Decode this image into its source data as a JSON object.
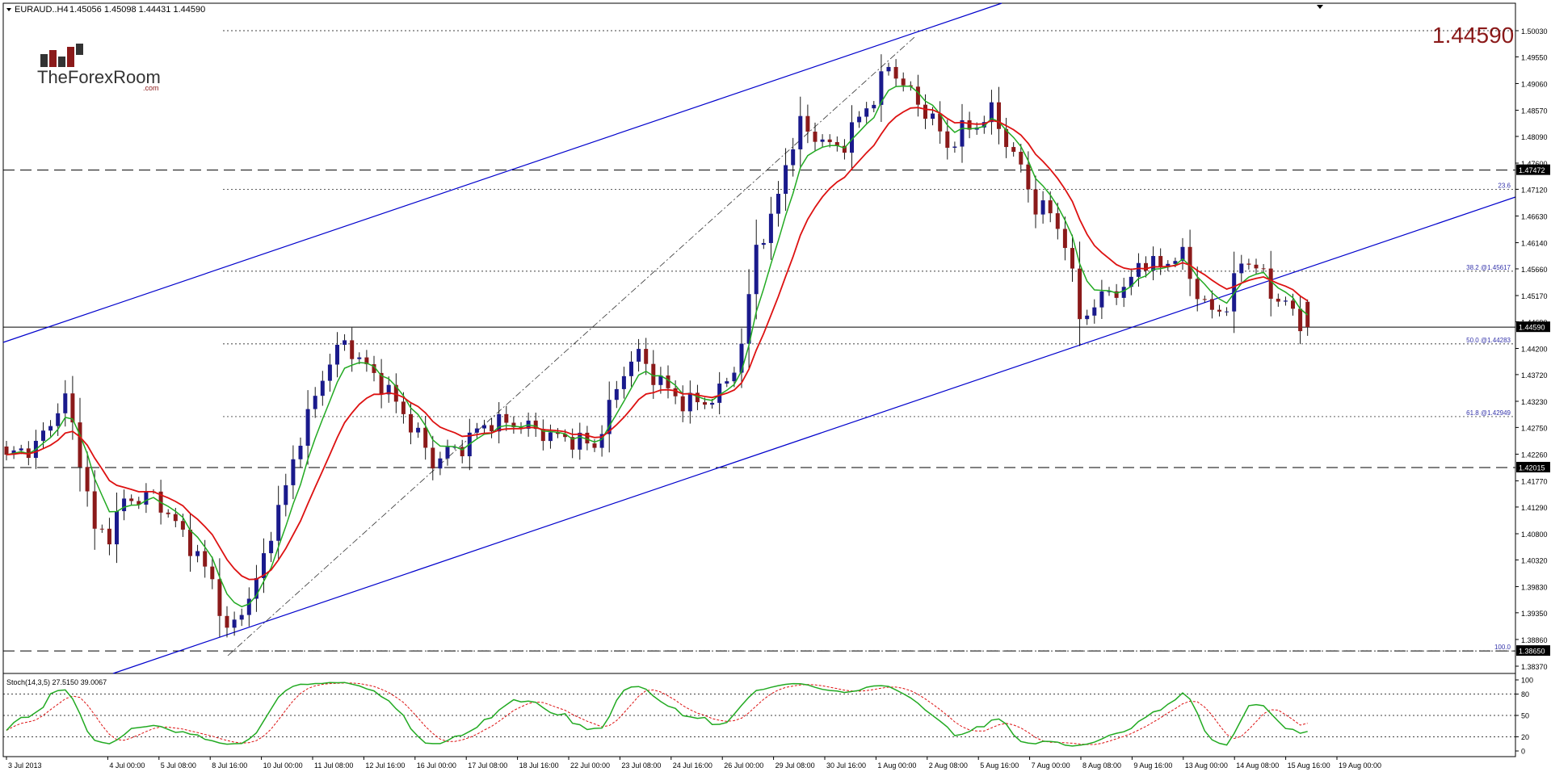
{
  "header": {
    "symbol_text": "EURAUD..H4",
    "ohlc_text": "1.45056 1.45098 1.44431 1.44590"
  },
  "logo": {
    "text_main": "TheForexRoom",
    "text_sub": ".com"
  },
  "big_price": "1.44590",
  "colors": {
    "bull": "#1a1a8c",
    "bear": "#8b1a1a",
    "ma_fast": "#22aa22",
    "ma_slow": "#dd1111",
    "channel": "#0000cc",
    "price_line": "#000000",
    "big_price": "#8b1a1a",
    "stoch_main": "#22aa22",
    "stoch_signal": "#dd1111"
  },
  "chart_data": {
    "type": "candlestick",
    "title": "EURAUD..H4",
    "ylim": [
      1.3837,
      1.5003
    ],
    "y_ticks": [
      "1.50030",
      "1.49550",
      "1.49060",
      "1.48570",
      "1.48090",
      "1.47600",
      "1.47120",
      "1.46630",
      "1.46140",
      "1.45660",
      "1.45170",
      "1.44690",
      "1.44200",
      "1.43720",
      "1.43230",
      "1.42750",
      "1.42260",
      "1.41770",
      "1.41290",
      "1.40800",
      "1.40320",
      "1.39830",
      "1.39350",
      "1.38860",
      "1.38370"
    ],
    "x_labels": [
      "3 Jul 2013",
      "4 Jul 00:00",
      "5 Jul 08:00",
      "8 Jul 16:00",
      "10 Jul 00:00",
      "11 Jul 08:00",
      "12 Jul 16:00",
      "16 Jul 00:00",
      "17 Jul 08:00",
      "18 Jul 16:00",
      "22 Jul 00:00",
      "23 Jul 08:00",
      "24 Jul 16:00",
      "26 Jul 00:00",
      "29 Jul 08:00",
      "30 Jul 16:00",
      "1 Aug 00:00",
      "2 Aug 08:00",
      "5 Aug 16:00",
      "7 Aug 00:00",
      "8 Aug 08:00",
      "9 Aug 16:00",
      "13 Aug 00:00",
      "14 Aug 08:00",
      "15 Aug 16:00",
      "19 Aug 00:00"
    ],
    "price_tags": [
      "1.47472",
      "1.44590",
      "1.42015",
      "1.38650"
    ],
    "fib_labels": [
      "23.6",
      "38.2 @1.45617",
      "50.0 @1.44283",
      "61.8 @1.42949",
      "100.0"
    ],
    "key_points": [
      [
        0,
        1.4225
      ],
      [
        4,
        1.424
      ],
      [
        8,
        1.433
      ],
      [
        10,
        1.422
      ],
      [
        12,
        1.4085
      ],
      [
        14,
        1.408
      ],
      [
        16,
        1.414
      ],
      [
        20,
        1.415
      ],
      [
        24,
        1.408
      ],
      [
        28,
        1.3995
      ],
      [
        30,
        1.3895
      ],
      [
        32,
        1.394
      ],
      [
        34,
        1.399
      ],
      [
        36,
        1.4085
      ],
      [
        38,
        1.4165
      ],
      [
        40,
        1.426
      ],
      [
        42,
        1.433
      ],
      [
        44,
        1.44
      ],
      [
        46,
        1.443
      ],
      [
        48,
        1.44
      ],
      [
        52,
        1.434
      ],
      [
        56,
        1.426
      ],
      [
        58,
        1.421
      ],
      [
        60,
        1.423
      ],
      [
        62,
        1.424
      ],
      [
        64,
        1.427
      ],
      [
        66,
        1.4285
      ],
      [
        70,
        1.428
      ],
      [
        74,
        1.426
      ],
      [
        78,
        1.425
      ],
      [
        80,
        1.424
      ],
      [
        82,
        1.431
      ],
      [
        84,
        1.438
      ],
      [
        86,
        1.441
      ],
      [
        88,
        1.437
      ],
      [
        92,
        1.432
      ],
      [
        96,
        1.4325
      ],
      [
        98,
        1.436
      ],
      [
        100,
        1.442
      ],
      [
        102,
        1.461
      ],
      [
        104,
        1.465
      ],
      [
        106,
        1.476
      ],
      [
        108,
        1.483
      ],
      [
        110,
        1.481
      ],
      [
        112,
        1.479
      ],
      [
        114,
        1.4795
      ],
      [
        116,
        1.4845
      ],
      [
        118,
        1.488
      ],
      [
        120,
        1.494
      ],
      [
        122,
        1.4905
      ],
      [
        124,
        1.487
      ],
      [
        126,
        1.484
      ],
      [
        128,
        1.479
      ],
      [
        130,
        1.482
      ],
      [
        132,
        1.483
      ],
      [
        134,
        1.4855
      ],
      [
        136,
        1.48
      ],
      [
        138,
        1.475
      ],
      [
        140,
        1.468
      ],
      [
        142,
        1.467
      ],
      [
        144,
        1.4615
      ],
      [
        146,
        1.448
      ],
      [
        148,
        1.4495
      ],
      [
        150,
        1.453
      ],
      [
        152,
        1.452
      ],
      [
        154,
        1.458
      ],
      [
        156,
        1.457
      ],
      [
        158,
        1.458
      ],
      [
        160,
        1.459
      ],
      [
        162,
        1.452
      ],
      [
        164,
        1.4485
      ],
      [
        166,
        1.45
      ],
      [
        168,
        1.458
      ],
      [
        170,
        1.4575
      ],
      [
        172,
        1.452
      ],
      [
        174,
        1.4505
      ],
      [
        176,
        1.4459
      ]
    ]
  },
  "stochastic": {
    "label": "Stoch(14,3,5) 27.5150 39.0067",
    "levels": [
      100,
      80,
      50,
      20,
      0
    ],
    "level_labels": [
      "100",
      "80",
      "50",
      "20",
      "0"
    ]
  }
}
